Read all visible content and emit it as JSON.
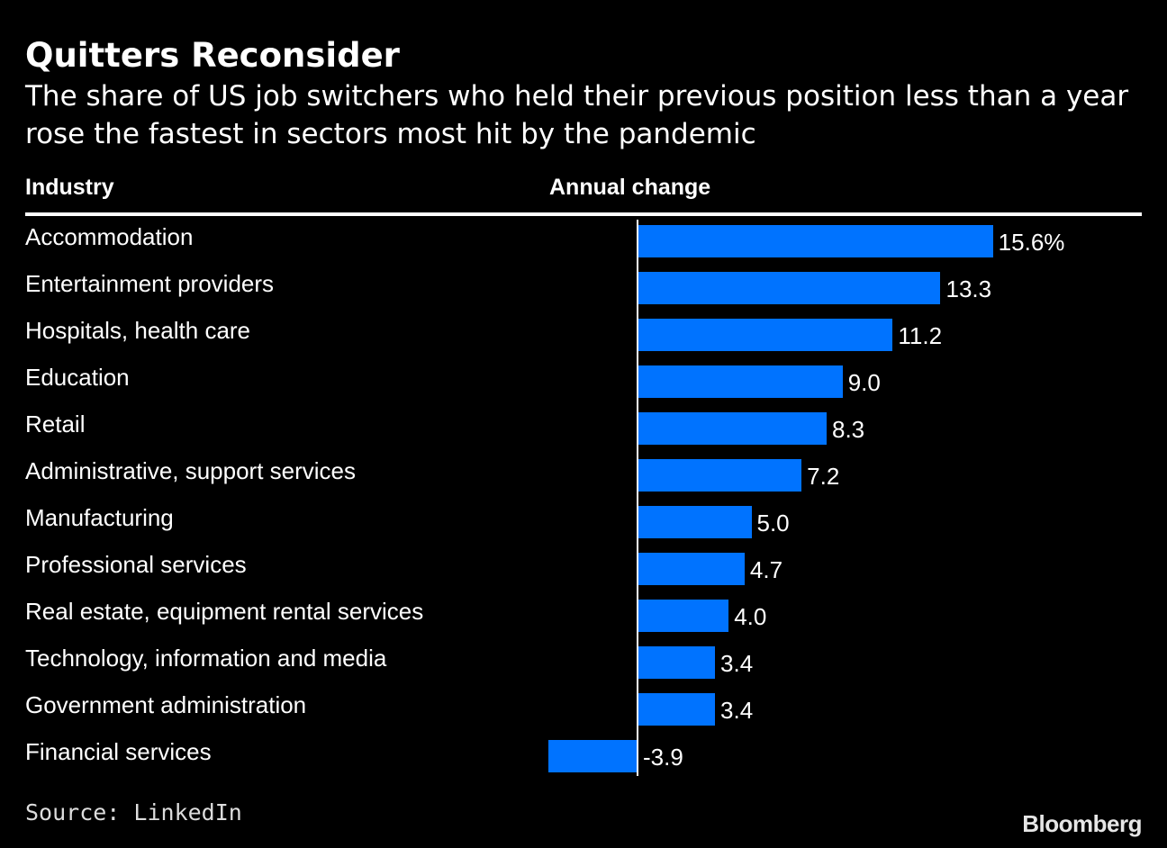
{
  "chart_data": {
    "type": "bar",
    "orientation": "horizontal",
    "title": "Quitters Reconsider",
    "subtitle": "The share of US job switchers who held their previous position less than a year rose the fastest in sectors most hit by the pandemic",
    "column_headers": {
      "industry": "Industry",
      "change": "Annual change"
    },
    "categories": [
      "Accommodation",
      "Entertainment providers",
      "Hospitals, health care",
      "Education",
      "Retail",
      "Administrative, support services",
      "Manufacturing",
      "Professional services",
      "Real estate, equipment rental services",
      "Technology, information and media",
      "Government administration",
      "Financial services"
    ],
    "values": [
      15.6,
      13.3,
      11.2,
      9.0,
      8.3,
      7.2,
      5.0,
      4.7,
      4.0,
      3.4,
      3.4,
      -3.9
    ],
    "value_labels": [
      "15.6%",
      "13.3",
      "11.2",
      "9.0",
      "8.3",
      "7.2",
      "5.0",
      "4.7",
      "4.0",
      "3.4",
      "3.4",
      "-3.9"
    ],
    "xlim": [
      -3.9,
      15.6
    ],
    "unit": "%",
    "bar_color": "#0073ff",
    "source": "Source: LinkedIn",
    "brand": "Bloomberg"
  }
}
